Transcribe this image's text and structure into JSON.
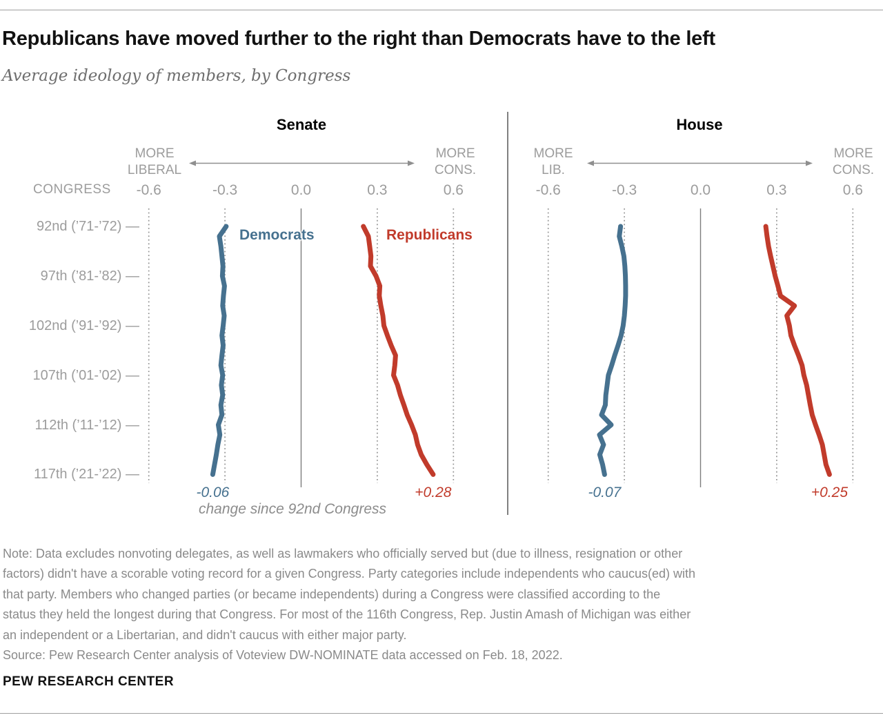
{
  "page": {
    "title": "Republicans have moved further to the right than Democrats have to the left",
    "subtitle": "Average ideology of members, by Congress",
    "footer": "PEW RESEARCH CENTER"
  },
  "note": {
    "lines": [
      "Note: Data excludes nonvoting delegates, as well as lawmakers who officially served but (due to illness, resignation or other",
      "factors) didn't have a scorable voting record for a given Congress. Party categories include independents who caucus(ed) with",
      "that party. Members who changed parties (or became independents) during a Congress were classified according to the",
      "status they held the longest during that Congress. For most of the 116th Congress, Rep. Justin Amash of Michigan was either",
      "an independent or a Libertarian, and didn't caucus with either major party."
    ],
    "source": "Source: Pew Research Center analysis of Voteview DW-NOMINATE data accessed on Feb. 18, 2022."
  },
  "chart_data": [
    {
      "type": "line",
      "panel": "Senate",
      "value_axis": {
        "range": [
          -0.6,
          0.6
        ],
        "ticks": [
          -0.6,
          -0.3,
          0,
          0.3,
          0.6
        ],
        "tick_labels": [
          "-0.6",
          "-0.3",
          "0.0",
          "0.3",
          "0.6"
        ],
        "left_label": [
          "MORE",
          "LIBERAL"
        ],
        "right_label": [
          "MORE",
          "CONS."
        ],
        "gridlines": "vertical dotted at ticks, solid at 0.0"
      },
      "congresses": {
        "start": 92,
        "end": 117
      },
      "congress_axis": {
        "title": "CONGRESS",
        "labels": [
          {
            "congress": 92,
            "text": "92nd (’71-’72) —"
          },
          {
            "congress": 97,
            "text": "97th (’81-’82) —"
          },
          {
            "congress": 102,
            "text": "102nd (’91-’92) —"
          },
          {
            "congress": 107,
            "text": "107th (’01-’02) —"
          },
          {
            "congress": 112,
            "text": "112th (’11-’12) —"
          },
          {
            "congress": 117,
            "text": "117th (’21-’22) —"
          }
        ]
      },
      "series": [
        {
          "name": "Democrats",
          "color": "#46718f",
          "change_label": "-0.06",
          "values": [
            -0.295,
            -0.322,
            -0.316,
            -0.312,
            -0.308,
            -0.31,
            -0.302,
            -0.306,
            -0.309,
            -0.303,
            -0.307,
            -0.312,
            -0.307,
            -0.312,
            -0.316,
            -0.309,
            -0.314,
            -0.309,
            -0.316,
            -0.312,
            -0.326,
            -0.32,
            -0.328,
            -0.334,
            -0.341,
            -0.348
          ]
        },
        {
          "name": "Republicans",
          "color": "#c13b2b",
          "change_label": "+0.28",
          "values": [
            0.245,
            0.265,
            0.27,
            0.275,
            0.273,
            0.295,
            0.31,
            0.308,
            0.314,
            0.322,
            0.326,
            0.34,
            0.355,
            0.372,
            0.369,
            0.364,
            0.38,
            0.391,
            0.405,
            0.418,
            0.435,
            0.45,
            0.459,
            0.473,
            0.495,
            0.52
          ]
        }
      ],
      "footnote": "change since 92nd Congress",
      "legend": "inline series labels"
    },
    {
      "type": "line",
      "panel": "House",
      "value_axis": {
        "range": [
          -0.6,
          0.6
        ],
        "ticks": [
          -0.6,
          -0.3,
          0,
          0.3,
          0.6
        ],
        "tick_labels": [
          "-0.6",
          "-0.3",
          "0.0",
          "0.3",
          "0.6"
        ],
        "left_label": [
          "MORE",
          "LIB."
        ],
        "right_label": [
          "MORE",
          "CONS."
        ],
        "gridlines": "vertical dotted at ticks, solid at 0.0"
      },
      "congresses": {
        "start": 92,
        "end": 117
      },
      "series": [
        {
          "name": "Democrats",
          "color": "#46718f",
          "change_label": "-0.07",
          "values": [
            -0.315,
            -0.32,
            -0.31,
            -0.302,
            -0.298,
            -0.296,
            -0.295,
            -0.295,
            -0.297,
            -0.3,
            -0.305,
            -0.313,
            -0.325,
            -0.338,
            -0.35,
            -0.363,
            -0.368,
            -0.373,
            -0.375,
            -0.39,
            -0.352,
            -0.398,
            -0.382,
            -0.397,
            -0.386,
            -0.378
          ]
        },
        {
          "name": "Republicans",
          "color": "#c13b2b",
          "change_label": "+0.25",
          "values": [
            0.257,
            0.262,
            0.268,
            0.276,
            0.285,
            0.294,
            0.305,
            0.315,
            0.37,
            0.34,
            0.35,
            0.356,
            0.37,
            0.386,
            0.4,
            0.407,
            0.418,
            0.425,
            0.432,
            0.44,
            0.453,
            0.467,
            0.48,
            0.487,
            0.494,
            0.508
          ]
        }
      ],
      "legend": "shares inline labels with Senate panel"
    }
  ]
}
